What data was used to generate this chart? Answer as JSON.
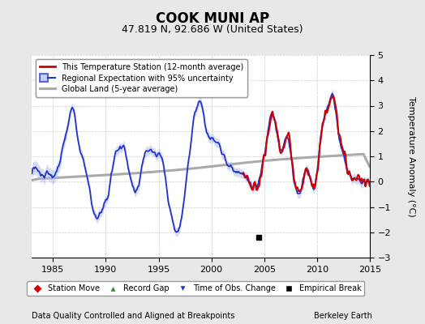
{
  "title": "COOK MUNI AP",
  "subtitle": "47.819 N, 92.686 W (United States)",
  "ylabel": "Temperature Anomaly (°C)",
  "xlabel_left": "Data Quality Controlled and Aligned at Breakpoints",
  "xlabel_right": "Berkeley Earth",
  "ylim": [
    -3,
    5
  ],
  "xlim": [
    1983.0,
    2015.0
  ],
  "xticks": [
    1985,
    1990,
    1995,
    2000,
    2005,
    2010,
    2015
  ],
  "yticks": [
    -3,
    -2,
    -1,
    0,
    1,
    2,
    3,
    4,
    5
  ],
  "bg_color": "#e8e8e8",
  "plot_bg_color": "#ffffff",
  "grid_color": "#cccccc",
  "empirical_break_x": 2004.5,
  "empirical_break_y": -2.2,
  "red_color": "#cc0000",
  "blue_color": "#2233cc",
  "blue_fill_color": "#aabbee",
  "gray_color": "#aaaaaa",
  "title_fontsize": 12,
  "subtitle_fontsize": 9,
  "tick_fontsize": 8,
  "ylabel_fontsize": 8,
  "legend_fontsize": 7,
  "footer_fontsize": 7
}
